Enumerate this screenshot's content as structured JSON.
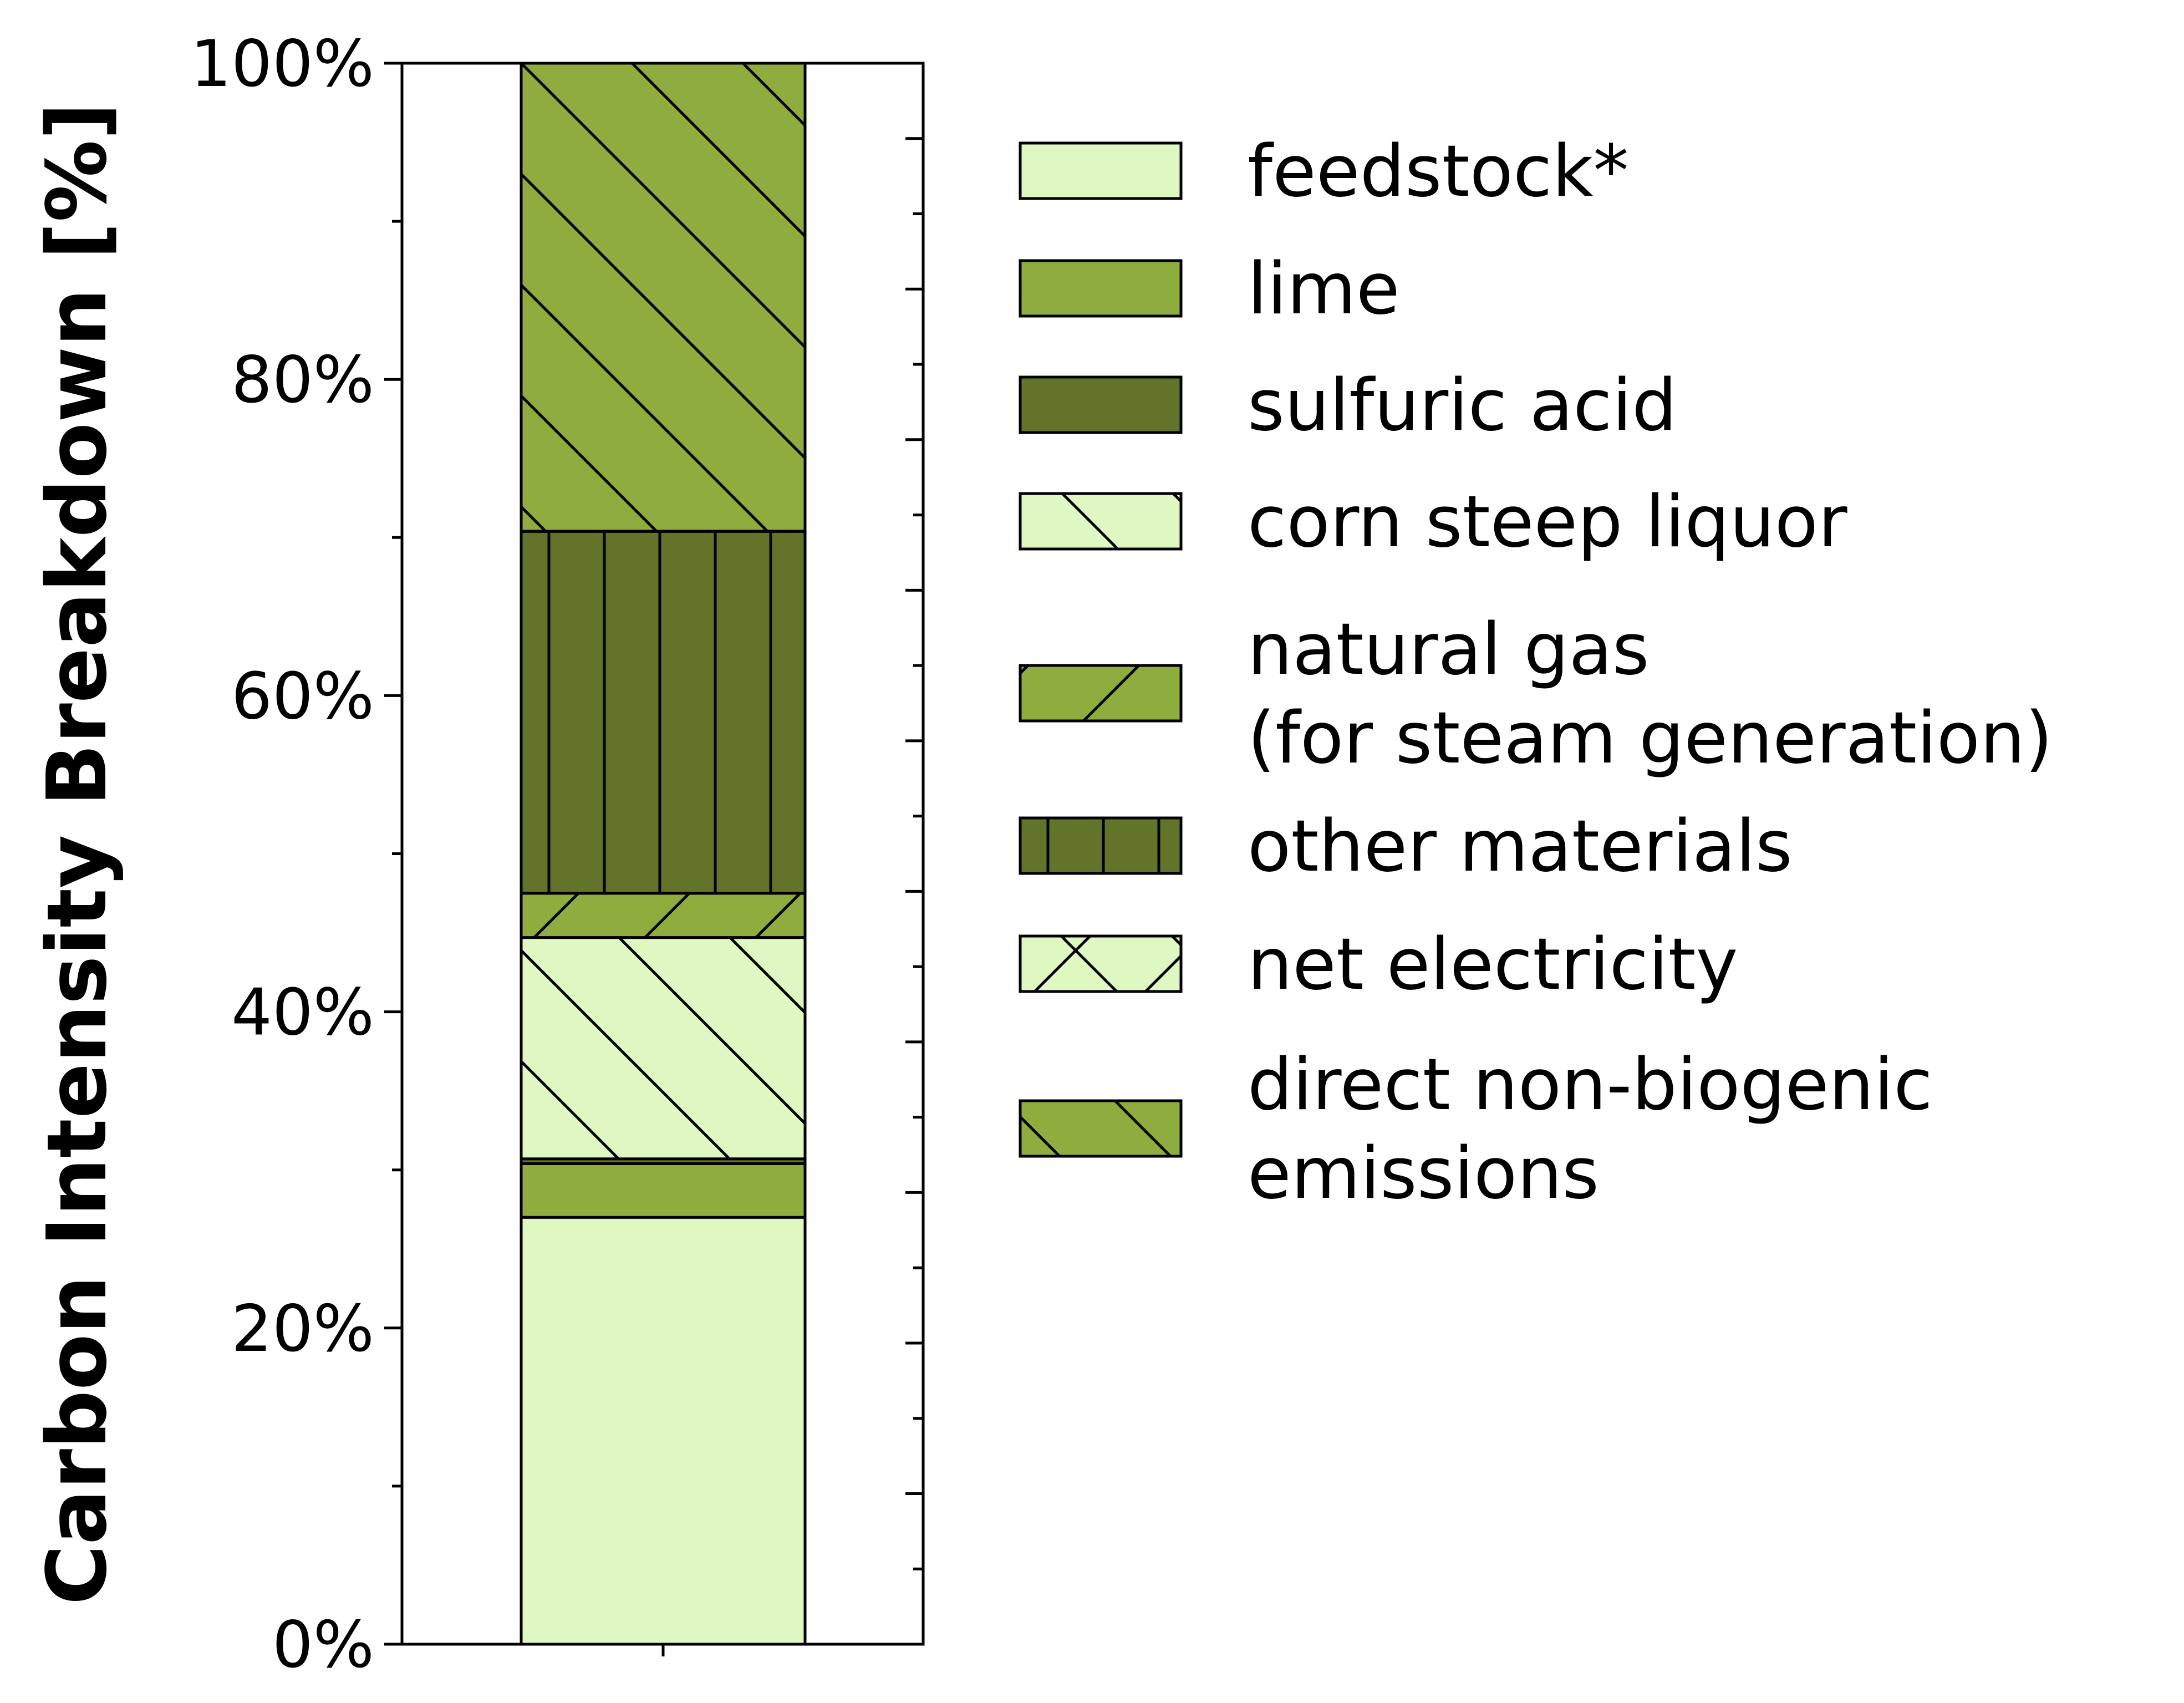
{
  "chart_data": {
    "type": "bar",
    "stacked": true,
    "normalized_percent": true,
    "categories": [
      ""
    ],
    "ylabel": "Carbon Intensity Breakdown [%]",
    "ylim": [
      0,
      100
    ],
    "yticks": [
      "0%",
      "20%",
      "40%",
      "60%",
      "80%",
      "100%"
    ],
    "minor_ticks": true,
    "grid": false,
    "legend_position": "right",
    "series": [
      {
        "name": "feedstock*",
        "values": [
          27.0
        ],
        "color": "#dff7c0",
        "hatch": "none"
      },
      {
        "name": "lime",
        "values": [
          3.4
        ],
        "color": "#8fac3e",
        "hatch": "none"
      },
      {
        "name": "sulfuric acid",
        "values": [
          0.3
        ],
        "color": "#627429",
        "hatch": "none"
      },
      {
        "name": "corn steep liquor",
        "values": [
          14.0
        ],
        "color": "#dff7c0",
        "hatch": "backslash"
      },
      {
        "name": "natural gas\n(for steam generation)",
        "values": [
          2.8
        ],
        "color": "#8fac3e",
        "hatch": "slash"
      },
      {
        "name": "other materials",
        "values": [
          22.9
        ],
        "color": "#627429",
        "hatch": "vertical"
      },
      {
        "name": "net electricity",
        "values": [
          0.0
        ],
        "color": "#dff7c0",
        "hatch": "cross"
      },
      {
        "name": "direct non-biogenic\nemissions",
        "values": [
          29.6
        ],
        "color": "#8fac3e",
        "hatch": "backslash"
      }
    ]
  }
}
